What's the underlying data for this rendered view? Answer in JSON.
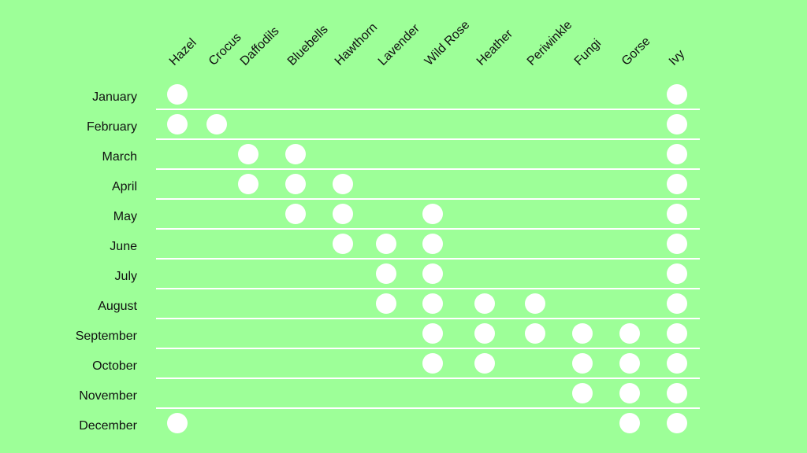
{
  "chart_data": {
    "type": "table",
    "title": "",
    "columns": [
      "Hazel",
      "Crocus",
      "Daffodils",
      "Bluebells",
      "Hawthorn",
      "Lavender",
      "Wild Rose",
      "Heather",
      "Periwinkle",
      "Fungi",
      "Gorse",
      "Ivy"
    ],
    "rows": [
      "January",
      "February",
      "March",
      "April",
      "May",
      "June",
      "July",
      "August",
      "September",
      "October",
      "November",
      "December"
    ],
    "available": {
      "January": [
        "Hazel",
        "Ivy"
      ],
      "February": [
        "Hazel",
        "Crocus",
        "Ivy"
      ],
      "March": [
        "Daffodils",
        "Bluebells",
        "Ivy"
      ],
      "April": [
        "Daffodils",
        "Bluebells",
        "Hawthorn",
        "Ivy"
      ],
      "May": [
        "Bluebells",
        "Hawthorn",
        "Wild Rose",
        "Ivy"
      ],
      "June": [
        "Hawthorn",
        "Lavender",
        "Wild Rose",
        "Ivy"
      ],
      "July": [
        "Lavender",
        "Wild Rose",
        "Ivy"
      ],
      "August": [
        "Lavender",
        "Wild Rose",
        "Heather",
        "Periwinkle",
        "Ivy"
      ],
      "September": [
        "Wild Rose",
        "Heather",
        "Periwinkle",
        "Fungi",
        "Gorse",
        "Ivy"
      ],
      "October": [
        "Wild Rose",
        "Heather",
        "Fungi",
        "Gorse",
        "Ivy"
      ],
      "November": [
        "Fungi",
        "Gorse",
        "Ivy"
      ],
      "December": [
        "Hazel",
        "Gorse",
        "Ivy"
      ]
    },
    "colors": {
      "background": "#9dff98",
      "marker": "#ffffff",
      "gridline": "#ffffff",
      "text": "#111111"
    },
    "marker": "filled-circle",
    "grid": "horizontal-row-separators",
    "legend": "none"
  }
}
